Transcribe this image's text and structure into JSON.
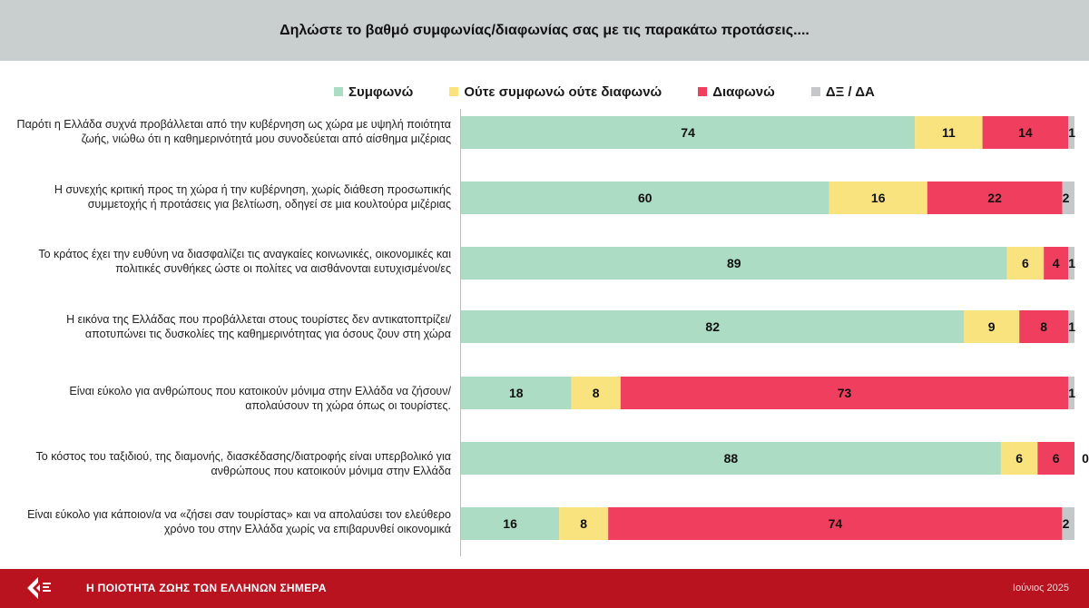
{
  "header": {
    "title": "Δηλώστε το βαθμό συμφωνίας/διαφωνίας σας με τις παρακάτω προτάσεις...."
  },
  "footer": {
    "title": "Η ΠΟΙΟΤΗΤΑ ΖΩΗΣ ΤΩΝ ΕΛΛΗΝΩΝ ΣΗΜΕΡΑ",
    "date": "Ιούνιος 2025"
  },
  "chart_data": {
    "type": "bar",
    "orientation": "horizontal",
    "stacked": true,
    "xlim": [
      0,
      100
    ],
    "legend_position": "top",
    "grid": false,
    "title": "Δηλώστε το βαθμό συμφωνίας/διαφωνίας σας με τις παρακάτω προτάσεις....",
    "categories": [
      "Παρότι η Ελλάδα συχνά προβάλλεται από την κυβέρνηση ως χώρα με υψηλή ποιότητα ζωής, νιώθω ότι η καθημερινότητά μου συνοδεύεται από αίσθημα μιζέριας",
      "Η συνεχής κριτική προς τη χώρα ή την κυβέρνηση, χωρίς διάθεση προσωπικής συμμετοχής ή προτάσεις για βελτίωση, οδηγεί σε μια κουλτούρα μιζέριας",
      "Το κράτος έχει την ευθύνη να διασφαλίζει τις αναγκαίες κοινωνικές, οικονομικές και πολιτικές συνθήκες ώστε οι πολίτες να αισθάνονται ευτυχισμένοι/ες",
      "Η εικόνα της Ελλάδας που προβάλλεται στους τουρίστες δεν αντικατοπτρίζει/αποτυπώνει τις δυσκολίες της καθημερινότητας για όσους ζουν στη χώρα",
      "Είναι εύκολο για ανθρώπους που κατοικούν μόνιμα στην Ελλάδα να ζήσουν/ απολαύσουν τη χώρα όπως οι τουρίστες.",
      "Το κόστος του ταξιδιού, της διαμονής, διασκέδασης/διατροφής είναι υπερβολικό για ανθρώπους που κατοικούν μόνιμα στην Ελλάδα",
      "Είναι εύκολο για κάποιον/α να «ζήσει σαν τουρίστας» και να απολαύσει τον ελεύθερο χρόνο του στην Ελλάδα χωρίς να επιβαρυνθεί οικονομικά"
    ],
    "series": [
      {
        "name": "Συμφωνώ",
        "color": "#acdcc4",
        "values": [
          74,
          60,
          89,
          82,
          18,
          88,
          16
        ]
      },
      {
        "name": "Ούτε συμφωνώ ούτε διαφωνώ",
        "color": "#f8e37e",
        "values": [
          11,
          16,
          6,
          9,
          8,
          6,
          8
        ]
      },
      {
        "name": "Διαφωνώ",
        "color": "#f03e5e",
        "values": [
          14,
          22,
          4,
          8,
          73,
          6,
          74
        ]
      },
      {
        "name": "ΔΞ / ΔΑ",
        "color": "#c4c8c8",
        "values": [
          1,
          2,
          1,
          1,
          1,
          0,
          2
        ]
      }
    ]
  }
}
